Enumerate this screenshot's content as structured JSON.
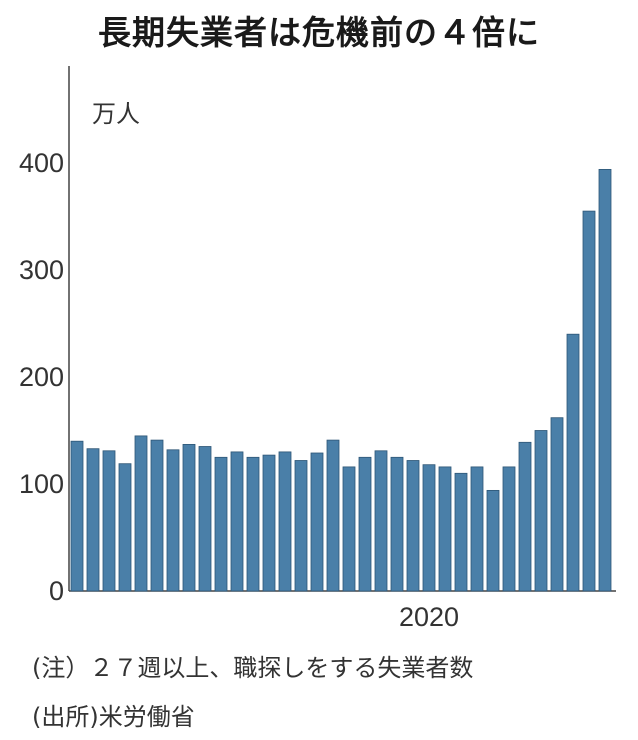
{
  "title": "長期失業者は危機前の４倍に",
  "notes": [
    "(注）２７週以上、職探しをする失業者数",
    "(出所)米労働省"
  ],
  "chart_data": {
    "type": "bar",
    "title": "長期失業者は危機前の４倍に",
    "ylabel": "万人",
    "xlabel": "",
    "ylim": [
      0,
      490
    ],
    "yticks": [
      0,
      100,
      200,
      300,
      400
    ],
    "x_tick_labels": [
      {
        "index": 22,
        "label": "2020"
      }
    ],
    "color": "#4a7fa8",
    "values": [
      140,
      133,
      131,
      119,
      145,
      141,
      132,
      137,
      135,
      125,
      130,
      125,
      127,
      130,
      122,
      129,
      141,
      116,
      125,
      131,
      125,
      122,
      118,
      116,
      110,
      116,
      94,
      116,
      139,
      150,
      162,
      240,
      355,
      394
    ]
  }
}
